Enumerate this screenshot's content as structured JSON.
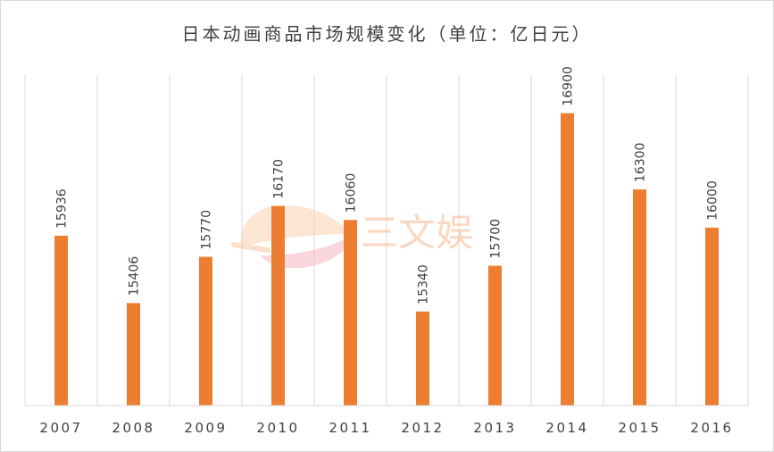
{
  "chart_data": {
    "type": "bar",
    "title": "日本动画商品市场规模变化（单位：亿日元）",
    "categories": [
      "2007",
      "2008",
      "2009",
      "2010",
      "2011",
      "2012",
      "2013",
      "2014",
      "2015",
      "2016"
    ],
    "values": [
      15936,
      15406,
      15770,
      16170,
      16060,
      15340,
      15700,
      16900,
      16300,
      16000
    ],
    "value_labels": [
      "15936",
      "15406",
      "15770",
      "16170",
      "16060",
      "15340",
      "15700",
      "16900",
      "16300",
      "16000"
    ],
    "ylim": [
      14600,
      17200
    ],
    "bar_color": "#ed7d31",
    "grid": "vertical category separators",
    "legend": "none",
    "label_orientation": "rotated"
  },
  "watermark": {
    "text": "三文娱",
    "color": "#f6b98f"
  }
}
